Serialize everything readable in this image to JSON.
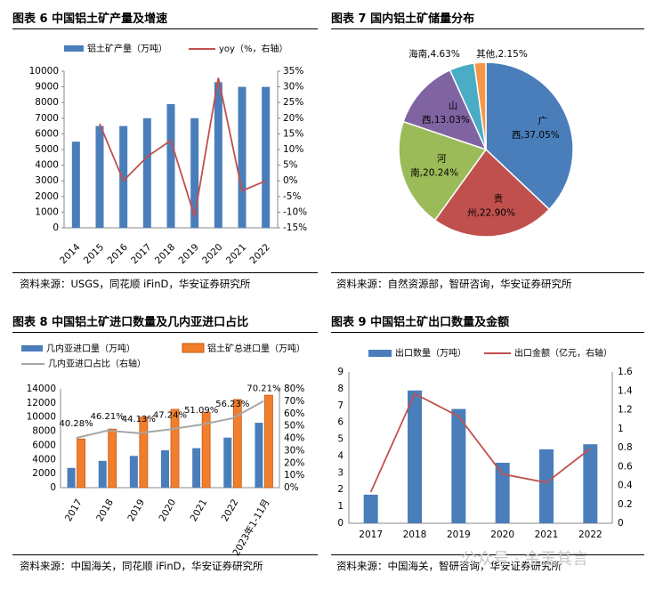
{
  "panels": {
    "p6": {
      "title": "图表 6  中国铝土矿产量及增速",
      "source": "资料来源：USGS，同花顺 iFinD，华安证券研究所"
    },
    "p7": {
      "title": "图表 7  国内铝土矿储量分布",
      "source": "资料来源：自然资源部，智研咨询，华安证券研究所"
    },
    "p8": {
      "title": "图表 8  中国铝土矿进口数量及几内亚进口占比",
      "source": "资料来源：中国海关，同花顺 iFinD，华安证券研究所"
    },
    "p9": {
      "title": "图表 9 中国铝土矿出口数量及金额",
      "source": "资料来源：中国海关，智研咨询，华安证券研究所"
    }
  },
  "watermark": "公众号 · 金玉其言",
  "colors": {
    "blue": "#4a7ebb",
    "red": "#c0504d",
    "orange": "#f07e2d",
    "gray": "#a6a6a6",
    "green": "#9bbb59",
    "purple": "#8064a2",
    "teal": "#4bacc6",
    "peach": "#f79646"
  },
  "chart_data": [
    {
      "id": "chart6",
      "type": "bar",
      "categories": [
        "2014",
        "2015",
        "2016",
        "2017",
        "2018",
        "2019",
        "2020",
        "2021",
        "2022"
      ],
      "series": [
        {
          "name": "铝土矿产量（万吨）",
          "type": "bar",
          "axis": "left",
          "values": [
            5500,
            6500,
            6500,
            7000,
            7900,
            7000,
            9300,
            9000,
            9000
          ]
        },
        {
          "name": "yoy（%，右轴）",
          "type": "line",
          "axis": "right",
          "values": [
            null,
            18.2,
            0,
            7.7,
            12.9,
            -11.4,
            32.9,
            -3.2,
            0
          ]
        }
      ],
      "ylim": [
        0,
        10000
      ],
      "yticks": [
        0,
        1000,
        2000,
        3000,
        4000,
        5000,
        6000,
        7000,
        8000,
        9000,
        10000
      ],
      "y2lim": [
        -15,
        35
      ],
      "y2ticks": [
        "-15%",
        "-10%",
        "-5%",
        "0%",
        "5%",
        "10%",
        "15%",
        "20%",
        "25%",
        "30%",
        "35%"
      ]
    },
    {
      "id": "chart7",
      "type": "pie",
      "slices": [
        {
          "name": "广西",
          "label1": "广",
          "label2": "西,37.05%",
          "value": 37.05
        },
        {
          "name": "贵州",
          "label1": "贵",
          "label2": "州,22.90%",
          "value": 22.9
        },
        {
          "name": "河南",
          "label1": "河",
          "label2": "南,20.24%",
          "value": 20.24
        },
        {
          "name": "山西",
          "label1": "山",
          "label2": "西,13.03%",
          "value": 13.03
        },
        {
          "name": "海南",
          "label1": "海南,4.63%",
          "label2": "",
          "value": 4.63
        },
        {
          "name": "其他",
          "label1": "其他,2.15%",
          "label2": "",
          "value": 2.15
        }
      ]
    },
    {
      "id": "chart8",
      "type": "bar",
      "categories": [
        "2017",
        "2018",
        "2019",
        "2020",
        "2021",
        "2022",
        "2023年1-11月"
      ],
      "series": [
        {
          "name": "几内亚进口量（万吨）",
          "type": "bar",
          "axis": "left",
          "values": [
            2800,
            3800,
            4500,
            5300,
            5600,
            7100,
            9200
          ]
        },
        {
          "name": "铝土矿总进口量（万吨）",
          "type": "bar",
          "axis": "left",
          "values": [
            6900,
            8300,
            10000,
            11100,
            10700,
            12500,
            13100
          ]
        },
        {
          "name": "几内亚进口占比（右轴）",
          "type": "line",
          "axis": "right",
          "values": [
            40.28,
            46.21,
            44.13,
            47.24,
            51.09,
            56.23,
            70.21
          ]
        }
      ],
      "data_labels": [
        "40.28%",
        "46.21%",
        "44.13%",
        "47.24%",
        "51.09%",
        "56.23%",
        "70.21%"
      ],
      "ylim": [
        0,
        14000
      ],
      "yticks": [
        0,
        2000,
        4000,
        6000,
        8000,
        10000,
        12000,
        14000
      ],
      "y2lim": [
        0,
        80
      ],
      "y2ticks": [
        "0%",
        "10%",
        "20%",
        "30%",
        "40%",
        "50%",
        "60%",
        "70%",
        "80%"
      ]
    },
    {
      "id": "chart9",
      "type": "bar",
      "categories": [
        "2017",
        "2018",
        "2019",
        "2020",
        "2021",
        "2022"
      ],
      "series": [
        {
          "name": "出口数量（万吨）",
          "type": "bar",
          "axis": "left",
          "values": [
            1.7,
            7.9,
            6.8,
            3.6,
            4.4,
            4.7
          ]
        },
        {
          "name": "出口金额（亿元，右轴）",
          "type": "line",
          "axis": "right",
          "values": [
            0.33,
            1.37,
            1.13,
            0.52,
            0.43,
            0.79
          ]
        }
      ],
      "ylim": [
        0,
        9
      ],
      "yticks": [
        0,
        1,
        2,
        3,
        4,
        5,
        6,
        7,
        8,
        9
      ],
      "y2lim": [
        0,
        1.6
      ],
      "y2ticks": [
        "0",
        "0.2",
        "0.4",
        "0.6",
        "0.8",
        "1",
        "1.2",
        "1.4",
        "1.6"
      ]
    }
  ]
}
